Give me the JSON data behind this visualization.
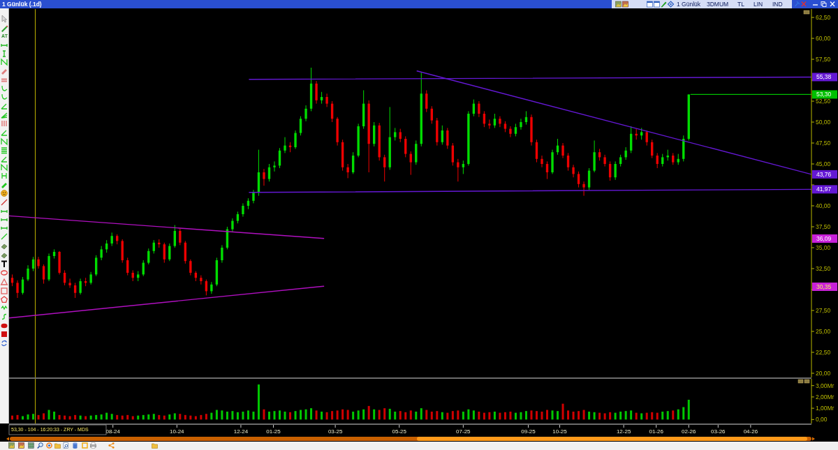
{
  "chart_data": [
    {
      "type": "candlestick",
      "title": "1 Günlük (.1d)",
      "x": [
        "2024-04-27",
        "2024-05-02",
        "2024-05-07",
        "2024-05-12",
        "2024-05-17",
        "2024-05-22",
        "2024-05-27",
        "2024-06-01",
        "2024-06-06",
        "2024-06-11",
        "2024-06-16",
        "2024-06-21",
        "2024-06-26",
        "2024-07-01",
        "2024-07-06",
        "2024-07-11",
        "2024-07-16",
        "2024-07-21",
        "2024-07-26",
        "2024-07-31",
        "2024-08-05",
        "2024-08-10",
        "2024-08-15",
        "2024-08-20",
        "2024-08-25",
        "2024-08-30",
        "2024-09-04",
        "2024-09-09",
        "2024-09-14",
        "2024-09-19",
        "2024-09-24",
        "2024-09-29",
        "2024-10-04",
        "2024-10-09",
        "2024-10-14",
        "2024-10-19",
        "2024-10-24",
        "2024-10-29",
        "2024-11-03",
        "2024-11-08",
        "2024-11-13",
        "2024-11-18",
        "2024-11-23",
        "2024-11-28",
        "2024-12-03",
        "2024-12-08",
        "2024-12-13",
        "2024-12-18",
        "2024-12-23",
        "2024-12-28",
        "2025-01-02",
        "2025-01-07",
        "2025-01-12",
        "2025-01-17",
        "2025-01-22",
        "2025-01-27",
        "2025-02-01",
        "2025-02-06",
        "2025-02-11",
        "2025-02-16",
        "2025-02-21",
        "2025-02-26",
        "2025-03-03",
        "2025-03-08",
        "2025-03-13",
        "2025-03-18",
        "2025-03-23",
        "2025-03-28",
        "2025-04-02",
        "2025-04-07",
        "2025-04-12",
        "2025-04-17",
        "2025-04-22",
        "2025-04-27",
        "2025-05-02",
        "2025-05-07",
        "2025-05-12",
        "2025-05-17",
        "2025-05-22",
        "2025-05-27",
        "2025-06-01",
        "2025-06-06",
        "2025-06-11",
        "2025-06-16",
        "2025-06-21",
        "2025-06-26",
        "2025-07-01",
        "2025-07-06",
        "2025-07-11",
        "2025-07-16",
        "2025-07-21",
        "2025-07-26",
        "2025-07-31",
        "2025-08-05",
        "2025-08-10",
        "2025-08-15",
        "2025-08-20",
        "2025-08-25",
        "2025-08-30",
        "2025-09-04",
        "2025-09-09",
        "2025-09-14",
        "2025-09-19",
        "2025-09-24",
        "2025-09-29",
        "2025-10-04",
        "2025-10-09",
        "2025-10-14",
        "2025-10-19",
        "2025-10-24",
        "2025-10-29",
        "2025-11-03",
        "2025-11-08",
        "2025-11-13",
        "2025-11-18",
        "2025-11-23",
        "2025-11-28",
        "2025-12-03",
        "2025-12-08",
        "2025-12-13",
        "2025-12-18",
        "2025-12-23",
        "2025-12-28",
        "2026-01-02",
        "2026-01-07",
        "2026-01-12",
        "2026-01-17",
        "2026-01-22",
        "2026-01-27",
        "2026-02-01"
      ],
      "ohlc": [
        [
          31.4,
          31.8,
          30.4,
          30.8
        ],
        [
          30.8,
          31.1,
          29.0,
          29.6
        ],
        [
          29.6,
          31.5,
          29.4,
          31.2
        ],
        [
          31.2,
          32.9,
          31.0,
          32.5
        ],
        [
          32.5,
          33.9,
          32.2,
          33.6
        ],
        [
          33.6,
          33.9,
          32.5,
          32.8
        ],
        [
          32.8,
          33.0,
          30.7,
          31.2
        ],
        [
          31.2,
          34.3,
          31.0,
          34.0
        ],
        [
          34.0,
          34.8,
          33.7,
          34.5
        ],
        [
          34.5,
          34.6,
          31.8,
          32.0
        ],
        [
          32.0,
          32.3,
          30.5,
          30.8
        ],
        [
          30.8,
          31.3,
          30.2,
          30.5
        ],
        [
          30.5,
          30.8,
          29.0,
          29.6
        ],
        [
          29.6,
          31.3,
          29.4,
          31.0
        ],
        [
          31.0,
          31.4,
          30.4,
          30.8
        ],
        [
          30.8,
          32.1,
          30.6,
          31.8
        ],
        [
          31.8,
          34.1,
          31.6,
          33.8
        ],
        [
          33.8,
          35.2,
          33.5,
          34.8
        ],
        [
          34.8,
          35.9,
          34.4,
          35.5
        ],
        [
          35.5,
          36.8,
          35.2,
          36.4
        ],
        [
          36.4,
          36.6,
          35.4,
          35.8
        ],
        [
          35.8,
          36.0,
          33.2,
          33.5
        ],
        [
          33.5,
          33.8,
          31.7,
          32.0
        ],
        [
          32.0,
          32.3,
          31.0,
          31.4
        ],
        [
          31.4,
          32.2,
          31.0,
          31.8
        ],
        [
          31.8,
          33.5,
          31.6,
          33.2
        ],
        [
          33.2,
          34.9,
          33.0,
          34.6
        ],
        [
          34.6,
          35.9,
          34.3,
          35.6
        ],
        [
          35.6,
          36.0,
          35.0,
          35.4
        ],
        [
          35.4,
          35.6,
          33.2,
          33.6
        ],
        [
          33.6,
          35.5,
          33.4,
          35.2
        ],
        [
          35.2,
          37.7,
          35.0,
          37.0
        ],
        [
          37.0,
          37.3,
          35.3,
          35.6
        ],
        [
          35.6,
          35.8,
          33.1,
          33.4
        ],
        [
          33.4,
          33.6,
          31.7,
          32.0
        ],
        [
          32.0,
          32.2,
          31.0,
          31.4
        ],
        [
          31.4,
          31.7,
          30.6,
          31.0
        ],
        [
          31.0,
          31.2,
          29.3,
          29.8
        ],
        [
          29.8,
          30.9,
          29.5,
          30.6
        ],
        [
          30.6,
          33.8,
          30.4,
          33.5
        ],
        [
          33.5,
          35.3,
          33.2,
          35.0
        ],
        [
          35.0,
          37.5,
          34.8,
          37.2
        ],
        [
          37.2,
          38.5,
          36.9,
          38.2
        ],
        [
          38.2,
          39.3,
          37.9,
          39.0
        ],
        [
          39.0,
          40.3,
          38.7,
          40.0
        ],
        [
          40.0,
          40.9,
          39.6,
          40.6
        ],
        [
          40.6,
          41.9,
          40.3,
          41.6
        ],
        [
          41.6,
          46.7,
          41.2,
          44.0
        ],
        [
          44.0,
          44.4,
          42.4,
          43.2
        ],
        [
          43.2,
          45.0,
          42.9,
          44.6
        ],
        [
          44.6,
          45.3,
          44.1,
          44.8
        ],
        [
          44.8,
          46.9,
          44.5,
          46.6
        ],
        [
          46.6,
          48.2,
          46.3,
          47.2
        ],
        [
          47.2,
          47.6,
          46.4,
          47.0
        ],
        [
          47.0,
          49.0,
          46.8,
          48.7
        ],
        [
          48.7,
          50.7,
          48.4,
          50.4
        ],
        [
          50.4,
          52.0,
          50.1,
          51.6
        ],
        [
          51.6,
          56.5,
          51.3,
          54.6
        ],
        [
          54.6,
          54.9,
          52.2,
          52.6
        ],
        [
          52.6,
          53.6,
          52.2,
          53.0
        ],
        [
          53.0,
          53.4,
          51.8,
          52.2
        ],
        [
          52.2,
          52.5,
          50.0,
          50.4
        ],
        [
          50.4,
          50.6,
          47.2,
          47.6
        ],
        [
          47.6,
          47.9,
          44.2,
          44.6
        ],
        [
          44.6,
          45.0,
          43.3,
          44.0
        ],
        [
          44.0,
          46.4,
          43.8,
          46.0
        ],
        [
          46.0,
          49.8,
          45.8,
          49.5
        ],
        [
          49.5,
          53.8,
          49.2,
          52.2
        ],
        [
          52.2,
          52.6,
          44.0,
          47.4
        ],
        [
          47.4,
          50.0,
          47.1,
          49.6
        ],
        [
          49.6,
          49.9,
          45.4,
          45.8
        ],
        [
          45.8,
          46.1,
          42.9,
          44.6
        ],
        [
          44.6,
          51.8,
          44.3,
          48.2
        ],
        [
          48.2,
          49.3,
          47.8,
          48.8
        ],
        [
          48.8,
          49.2,
          47.6,
          48.0
        ],
        [
          48.0,
          48.3,
          45.8,
          46.2
        ],
        [
          46.2,
          46.5,
          43.7,
          45.2
        ],
        [
          45.2,
          47.8,
          44.9,
          47.4
        ],
        [
          47.4,
          55.9,
          47.1,
          53.4
        ],
        [
          53.4,
          53.8,
          51.2,
          51.6
        ],
        [
          51.6,
          51.9,
          49.8,
          50.2
        ],
        [
          50.2,
          50.5,
          47.2,
          47.6
        ],
        [
          47.6,
          49.6,
          47.3,
          49.0
        ],
        [
          49.0,
          49.3,
          46.8,
          47.2
        ],
        [
          47.2,
          47.5,
          44.8,
          45.2
        ],
        [
          45.2,
          45.6,
          42.9,
          44.6
        ],
        [
          44.6,
          45.4,
          43.8,
          45.0
        ],
        [
          45.0,
          51.3,
          44.8,
          51.0
        ],
        [
          51.0,
          52.7,
          50.7,
          52.2
        ],
        [
          52.2,
          52.5,
          50.6,
          51.0
        ],
        [
          51.0,
          51.3,
          49.4,
          49.8
        ],
        [
          49.8,
          50.3,
          49.2,
          49.6
        ],
        [
          49.6,
          51.0,
          49.3,
          50.4
        ],
        [
          50.4,
          50.7,
          49.4,
          49.8
        ],
        [
          49.8,
          50.1,
          48.8,
          49.2
        ],
        [
          49.2,
          49.5,
          48.2,
          48.6
        ],
        [
          48.6,
          49.8,
          48.3,
          49.4
        ],
        [
          49.4,
          50.4,
          49.1,
          50.0
        ],
        [
          50.0,
          51.3,
          49.7,
          50.6
        ],
        [
          50.6,
          50.9,
          47.2,
          47.6
        ],
        [
          47.6,
          47.9,
          45.2,
          45.6
        ],
        [
          45.6,
          46.0,
          44.6,
          45.0
        ],
        [
          45.0,
          45.3,
          43.2,
          44.0
        ],
        [
          44.0,
          46.7,
          43.8,
          46.4
        ],
        [
          46.4,
          48.0,
          46.1,
          47.2
        ],
        [
          47.2,
          47.5,
          45.7,
          46.0
        ],
        [
          46.0,
          46.3,
          44.2,
          44.6
        ],
        [
          44.6,
          44.9,
          43.4,
          43.8
        ],
        [
          43.8,
          44.1,
          42.2,
          42.6
        ],
        [
          42.6,
          42.9,
          41.2,
          42.2
        ],
        [
          42.2,
          44.5,
          41.9,
          44.2
        ],
        [
          44.2,
          47.8,
          44.0,
          46.4
        ],
        [
          46.4,
          46.8,
          45.4,
          45.8
        ],
        [
          45.8,
          46.1,
          44.7,
          45.0
        ],
        [
          45.0,
          45.3,
          43.0,
          43.4
        ],
        [
          43.4,
          45.3,
          43.1,
          45.0
        ],
        [
          45.0,
          46.1,
          44.7,
          45.8
        ],
        [
          45.8,
          47.0,
          45.5,
          46.6
        ],
        [
          46.6,
          49.5,
          46.3,
          48.6
        ],
        [
          48.6,
          49.2,
          47.9,
          48.4
        ],
        [
          48.4,
          49.3,
          47.9,
          48.8
        ],
        [
          48.8,
          49.0,
          47.2,
          47.6
        ],
        [
          47.6,
          47.9,
          45.7,
          46.0
        ],
        [
          46.0,
          46.3,
          44.5,
          45.0
        ],
        [
          45.0,
          46.2,
          44.7,
          45.8
        ],
        [
          45.8,
          46.7,
          45.4,
          46.0
        ],
        [
          46.0,
          46.3,
          44.9,
          45.2
        ],
        [
          45.2,
          46.2,
          44.9,
          45.6
        ],
        [
          45.6,
          48.4,
          45.3,
          48.0
        ],
        [
          48.0,
          53.3,
          47.8,
          53.3
        ]
      ],
      "series": [
        {
          "type": "line",
          "color": "#6418d4",
          "x": [
            "2024-12-09",
            "2026-05-29"
          ],
          "values": [
            55.1,
            55.38
          ],
          "value_labels": [
            null,
            "55,38"
          ]
        },
        {
          "type": "line",
          "color": "#6418d4",
          "x": [
            "2025-05-18",
            "2026-05-29"
          ],
          "values": [
            56.1,
            43.76
          ],
          "value_labels": [
            null,
            "43,76"
          ]
        },
        {
          "type": "line",
          "color": "#6418d4",
          "x": [
            "2024-12-09",
            "2026-05-29"
          ],
          "values": [
            41.6,
            41.97
          ],
          "value_labels": [
            null,
            "41,97"
          ]
        },
        {
          "type": "line",
          "color": "#b010c0",
          "x": [
            "2024-04-24",
            "2025-02-18"
          ],
          "values": [
            38.8,
            36.1
          ]
        },
        {
          "type": "line",
          "color": "#b010c0",
          "x": [
            "2024-04-24",
            "2025-02-18"
          ],
          "values": [
            26.6,
            30.4
          ]
        },
        {
          "type": "line",
          "color": "#00c000",
          "x": [
            "2026-02-03",
            "2026-05-29"
          ],
          "values": [
            53.3,
            53.3
          ],
          "value_labels": [
            null,
            "53,30"
          ]
        }
      ],
      "xlim": [
        "2024-04-24",
        "2026-05-29"
      ],
      "ylim": [
        19.5,
        63.5
      ],
      "yticks": [
        {
          "value": 20,
          "label": "20,00"
        },
        {
          "value": 22.5,
          "label": "22,50"
        },
        {
          "value": 25,
          "label": "25,00"
        },
        {
          "value": 27.5,
          "label": "27,50"
        },
        {
          "value": 30,
          "label": null
        },
        {
          "value": 32.5,
          "label": "32,50"
        },
        {
          "value": 35,
          "label": "35,00"
        },
        {
          "value": 37.5,
          "label": "37,50"
        },
        {
          "value": 40,
          "label": "40,00"
        },
        {
          "value": 42.5,
          "label": null
        },
        {
          "value": 45,
          "label": "45,00"
        },
        {
          "value": 47.5,
          "label": "47,50"
        },
        {
          "value": 50,
          "label": "50,00"
        },
        {
          "value": 52.5,
          "label": "52,50"
        },
        {
          "value": 55,
          "label": null
        },
        {
          "value": 57.5,
          "label": "57,50"
        },
        {
          "value": 60,
          "label": "60,00"
        },
        {
          "value": 62.5,
          "label": "62,50"
        }
      ],
      "tick_labels": "y",
      "ref_lines": [
        {
          "axis": "x",
          "value": "2024-05-19",
          "color": "#a89c00"
        }
      ],
      "annotations": [
        "1 Günlük",
        "3DMUM",
        "TL",
        "LIN",
        "IND",
        "53,30 - 104 - 16:20:33 - ZRY - MDS",
        "AT",
        "36,09",
        "30,35"
      ]
    },
    {
      "type": "bar",
      "x": [
        "2024-04-27",
        "2024-05-02",
        "2024-05-07",
        "2024-05-12",
        "2024-05-17",
        "2024-05-22",
        "2024-05-27",
        "2024-06-01",
        "2024-06-06",
        "2024-06-11",
        "2024-06-16",
        "2024-06-21",
        "2024-06-26",
        "2024-07-01",
        "2024-07-06",
        "2024-07-11",
        "2024-07-16",
        "2024-07-21",
        "2024-07-26",
        "2024-07-31",
        "2024-08-05",
        "2024-08-10",
        "2024-08-15",
        "2024-08-20",
        "2024-08-25",
        "2024-08-30",
        "2024-09-04",
        "2024-09-09",
        "2024-09-14",
        "2024-09-19",
        "2024-09-24",
        "2024-09-29",
        "2024-10-04",
        "2024-10-09",
        "2024-10-14",
        "2024-10-19",
        "2024-10-24",
        "2024-10-29",
        "2024-11-03",
        "2024-11-08",
        "2024-11-13",
        "2024-11-18",
        "2024-11-23",
        "2024-11-28",
        "2024-12-03",
        "2024-12-08",
        "2024-12-13",
        "2024-12-18",
        "2024-12-23",
        "2024-12-28",
        "2025-01-02",
        "2025-01-07",
        "2025-01-12",
        "2025-01-17",
        "2025-01-22",
        "2025-01-27",
        "2025-02-01",
        "2025-02-06",
        "2025-02-11",
        "2025-02-16",
        "2025-02-21",
        "2025-02-26",
        "2025-03-03",
        "2025-03-08",
        "2025-03-13",
        "2025-03-18",
        "2025-03-23",
        "2025-03-28",
        "2025-04-02",
        "2025-04-07",
        "2025-04-12",
        "2025-04-17",
        "2025-04-22",
        "2025-04-27",
        "2025-05-02",
        "2025-05-07",
        "2025-05-12",
        "2025-05-17",
        "2025-05-22",
        "2025-05-27",
        "2025-06-01",
        "2025-06-06",
        "2025-06-11",
        "2025-06-16",
        "2025-06-21",
        "2025-06-26",
        "2025-07-01",
        "2025-07-06",
        "2025-07-11",
        "2025-07-16",
        "2025-07-21",
        "2025-07-26",
        "2025-07-31",
        "2025-08-05",
        "2025-08-10",
        "2025-08-15",
        "2025-08-20",
        "2025-08-25",
        "2025-08-30",
        "2025-09-04",
        "2025-09-09",
        "2025-09-14",
        "2025-09-19",
        "2025-09-24",
        "2025-09-29",
        "2025-10-04",
        "2025-10-09",
        "2025-10-14",
        "2025-10-19",
        "2025-10-24",
        "2025-10-29",
        "2025-11-03",
        "2025-11-08",
        "2025-11-13",
        "2025-11-18",
        "2025-11-23",
        "2025-11-28",
        "2025-12-03",
        "2025-12-08",
        "2025-12-13",
        "2025-12-18",
        "2025-12-23",
        "2025-12-28",
        "2026-01-02",
        "2026-01-07",
        "2026-01-12",
        "2026-01-17",
        "2026-01-22",
        "2026-01-27",
        "2026-02-01"
      ],
      "values": [
        0.35,
        0.4,
        0.3,
        0.45,
        0.5,
        0.4,
        0.55,
        0.85,
        0.7,
        0.4,
        0.35,
        0.3,
        0.4,
        0.35,
        0.3,
        0.35,
        0.4,
        0.45,
        0.6,
        0.5,
        0.4,
        0.35,
        0.4,
        0.3,
        0.35,
        0.4,
        0.45,
        0.5,
        0.4,
        0.35,
        0.45,
        0.55,
        0.5,
        0.4,
        0.35,
        0.3,
        0.4,
        0.5,
        0.6,
        0.85,
        0.8,
        0.7,
        0.75,
        0.65,
        0.7,
        0.8,
        0.7,
        3.1,
        0.9,
        0.7,
        0.75,
        0.8,
        0.7,
        0.65,
        0.75,
        0.85,
        0.9,
        1.0,
        0.8,
        0.7,
        0.65,
        0.75,
        0.8,
        0.9,
        0.85,
        0.7,
        0.8,
        0.9,
        1.2,
        0.9,
        0.85,
        1.0,
        0.95,
        0.7,
        0.75,
        0.65,
        0.8,
        0.7,
        1.0,
        0.85,
        0.7,
        0.75,
        0.65,
        0.6,
        0.75,
        0.8,
        0.7,
        0.9,
        0.8,
        0.7,
        0.6,
        0.65,
        0.7,
        0.6,
        0.65,
        0.7,
        0.6,
        0.65,
        0.75,
        0.8,
        0.75,
        0.7,
        0.85,
        0.8,
        0.75,
        1.4,
        0.8,
        0.7,
        0.75,
        0.85,
        0.7,
        0.65,
        0.6,
        0.55,
        0.65,
        0.6,
        0.7,
        0.75,
        0.8,
        0.6,
        0.55,
        0.6,
        0.65,
        0.6,
        0.7,
        0.75,
        0.8,
        0.9,
        1.1,
        1.75
      ],
      "colors": [
        "#d00000",
        "#d00000",
        "#00c800",
        "#00c800",
        "#00c800",
        "#d00000",
        "#d00000",
        "#00c800",
        "#00c800",
        "#d00000",
        "#d00000",
        "#d00000",
        "#d00000",
        "#00c800",
        "#d00000",
        "#00c800",
        "#00c800",
        "#00c800",
        "#00c800",
        "#00c800",
        "#d00000",
        "#d00000",
        "#d00000",
        "#d00000",
        "#00c800",
        "#00c800",
        "#00c800",
        "#00c800",
        "#d00000",
        "#d00000",
        "#00c800",
        "#00c800",
        "#d00000",
        "#d00000",
        "#d00000",
        "#d00000",
        "#d00000",
        "#d00000",
        "#00c800",
        "#00c800",
        "#00c800",
        "#00c800",
        "#00c800",
        "#00c800",
        "#00c800",
        "#00c800",
        "#00c800",
        "#00c800",
        "#d00000",
        "#00c800",
        "#00c800",
        "#00c800",
        "#00c800",
        "#d00000",
        "#00c800",
        "#00c800",
        "#00c800",
        "#00c800",
        "#d00000",
        "#00c800",
        "#d00000",
        "#d00000",
        "#d00000",
        "#d00000",
        "#d00000",
        "#00c800",
        "#00c800",
        "#00c800",
        "#d00000",
        "#00c800",
        "#d00000",
        "#d00000",
        "#00c800",
        "#00c800",
        "#d00000",
        "#d00000",
        "#d00000",
        "#00c800",
        "#00c800",
        "#d00000",
        "#d00000",
        "#d00000",
        "#00c800",
        "#d00000",
        "#d00000",
        "#d00000",
        "#00c800",
        "#00c800",
        "#00c800",
        "#d00000",
        "#d00000",
        "#d00000",
        "#00c800",
        "#d00000",
        "#d00000",
        "#d00000",
        "#00c800",
        "#00c800",
        "#00c800",
        "#d00000",
        "#d00000",
        "#d00000",
        "#d00000",
        "#00c800",
        "#00c800",
        "#d00000",
        "#d00000",
        "#d00000",
        "#d00000",
        "#d00000",
        "#00c800",
        "#00c800",
        "#d00000",
        "#d00000",
        "#d00000",
        "#00c800",
        "#00c800",
        "#00c800",
        "#00c800",
        "#d00000",
        "#00c800",
        "#d00000",
        "#d00000",
        "#d00000",
        "#00c800",
        "#00c800",
        "#d00000",
        "#00c800",
        "#00c800",
        "#00c800"
      ],
      "xlim": [
        "2024-04-24",
        "2026-05-29"
      ],
      "xticks": [
        {
          "value": "2024-08-01",
          "label": "08-24"
        },
        {
          "value": "2024-10-01",
          "label": "10-24"
        },
        {
          "value": "2024-12-01",
          "label": "12-24"
        },
        {
          "value": "2025-01-01",
          "label": "01-25"
        },
        {
          "value": "2025-03-01",
          "label": "03-25"
        },
        {
          "value": "2025-05-01",
          "label": "05-25"
        },
        {
          "value": "2025-07-01",
          "label": "07-25"
        },
        {
          "value": "2025-09-01",
          "label": "09-25"
        },
        {
          "value": "2025-10-01",
          "label": "10-25"
        },
        {
          "value": "2025-12-01",
          "label": "12-25"
        },
        {
          "value": "2026-01-01",
          "label": "01-26"
        },
        {
          "value": "2026-02-01",
          "label": "02-26"
        },
        {
          "value": "2026-03-01",
          "label": "03-26"
        },
        {
          "value": "2026-04-01",
          "label": "04-26"
        }
      ],
      "ylim": [
        -0.35,
        3.6
      ],
      "yticks": [
        {
          "value": 0,
          "label": "0,00"
        },
        {
          "value": 1,
          "label": "1,00Mr"
        },
        {
          "value": 2,
          "label": "2,00Mr"
        },
        {
          "value": 3,
          "label": "3,00Mr"
        }
      ],
      "ref_lines": [
        {
          "axis": "x",
          "value": "2024-05-19",
          "color": "#a89c00"
        }
      ]
    }
  ]
}
